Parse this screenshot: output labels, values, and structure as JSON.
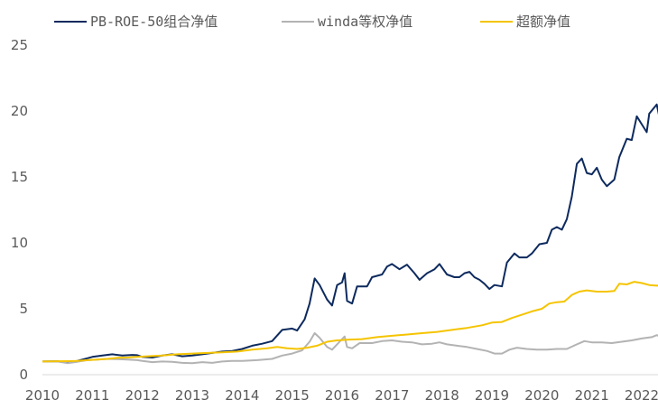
{
  "chart_data": {
    "type": "line",
    "title": "",
    "xlabel": "",
    "ylabel": "",
    "xlim": [
      2010,
      2022
    ],
    "ylim": [
      0,
      25
    ],
    "x_ticks": [
      "2010",
      "2011",
      "2012",
      "2013",
      "2014",
      "2015",
      "2016",
      "2017",
      "2018",
      "2019",
      "2020",
      "2021",
      "2022"
    ],
    "y_ticks": [
      "0",
      "5",
      "10",
      "15",
      "20",
      "25"
    ],
    "grid": false,
    "legend_position": "top",
    "series": [
      {
        "name": "PB-ROE-50组合净值",
        "color": "#0d2a5e",
        "points": [
          [
            2010.0,
            1.0
          ],
          [
            2010.3,
            1.02
          ],
          [
            2010.5,
            0.92
          ],
          [
            2010.7,
            1.05
          ],
          [
            2010.9,
            1.25
          ],
          [
            2011.0,
            1.35
          ],
          [
            2011.2,
            1.45
          ],
          [
            2011.4,
            1.55
          ],
          [
            2011.6,
            1.45
          ],
          [
            2011.8,
            1.5
          ],
          [
            2011.9,
            1.48
          ],
          [
            2012.0,
            1.35
          ],
          [
            2012.2,
            1.3
          ],
          [
            2012.4,
            1.45
          ],
          [
            2012.6,
            1.55
          ],
          [
            2012.8,
            1.4
          ],
          [
            2013.0,
            1.45
          ],
          [
            2013.2,
            1.55
          ],
          [
            2013.4,
            1.65
          ],
          [
            2013.6,
            1.75
          ],
          [
            2013.8,
            1.8
          ],
          [
            2014.0,
            1.95
          ],
          [
            2014.2,
            2.2
          ],
          [
            2014.4,
            2.35
          ],
          [
            2014.6,
            2.55
          ],
          [
            2014.8,
            3.4
          ],
          [
            2015.0,
            3.5
          ],
          [
            2015.1,
            3.35
          ],
          [
            2015.25,
            4.2
          ],
          [
            2015.35,
            5.4
          ],
          [
            2015.45,
            7.3
          ],
          [
            2015.55,
            6.8
          ],
          [
            2015.7,
            5.7
          ],
          [
            2015.8,
            5.25
          ],
          [
            2015.9,
            6.8
          ],
          [
            2016.0,
            7.0
          ],
          [
            2016.05,
            7.7
          ],
          [
            2016.1,
            5.6
          ],
          [
            2016.2,
            5.4
          ],
          [
            2016.3,
            6.7
          ],
          [
            2016.5,
            6.7
          ],
          [
            2016.6,
            7.4
          ],
          [
            2016.8,
            7.6
          ],
          [
            2016.9,
            8.2
          ],
          [
            2017.0,
            8.4
          ],
          [
            2017.15,
            8.0
          ],
          [
            2017.3,
            8.35
          ],
          [
            2017.45,
            7.7
          ],
          [
            2017.55,
            7.2
          ],
          [
            2017.7,
            7.7
          ],
          [
            2017.85,
            8.0
          ],
          [
            2017.95,
            8.4
          ],
          [
            2018.1,
            7.6
          ],
          [
            2018.25,
            7.4
          ],
          [
            2018.35,
            7.4
          ],
          [
            2018.45,
            7.7
          ],
          [
            2018.55,
            7.8
          ],
          [
            2018.65,
            7.4
          ],
          [
            2018.75,
            7.2
          ],
          [
            2018.85,
            6.9
          ],
          [
            2018.95,
            6.5
          ],
          [
            2019.05,
            6.8
          ],
          [
            2019.2,
            6.7
          ],
          [
            2019.3,
            8.5
          ],
          [
            2019.45,
            9.2
          ],
          [
            2019.55,
            8.9
          ],
          [
            2019.7,
            8.9
          ],
          [
            2019.8,
            9.2
          ],
          [
            2019.95,
            9.9
          ],
          [
            2020.1,
            10.0
          ],
          [
            2020.2,
            11.0
          ],
          [
            2020.3,
            11.2
          ],
          [
            2020.4,
            11.0
          ],
          [
            2020.5,
            11.8
          ],
          [
            2020.6,
            13.5
          ],
          [
            2020.7,
            16.0
          ],
          [
            2020.8,
            16.4
          ],
          [
            2020.9,
            15.3
          ],
          [
            2021.0,
            15.2
          ],
          [
            2021.1,
            15.7
          ],
          [
            2021.2,
            14.8
          ],
          [
            2021.3,
            14.3
          ],
          [
            2021.45,
            14.8
          ],
          [
            2021.55,
            16.5
          ],
          [
            2021.7,
            17.9
          ],
          [
            2021.8,
            17.8
          ],
          [
            2021.9,
            19.6
          ],
          [
            2022.0,
            19.0
          ],
          [
            2022.1,
            18.4
          ],
          [
            2022.15,
            19.8
          ],
          [
            2022.3,
            20.5
          ],
          [
            2022.4,
            18.7
          ],
          [
            2022.5,
            19.7
          ]
        ]
      },
      {
        "name": "winda等权净值",
        "color": "#b3b3b3",
        "points": [
          [
            2010.0,
            1.0
          ],
          [
            2010.3,
            1.0
          ],
          [
            2010.5,
            0.88
          ],
          [
            2010.7,
            0.98
          ],
          [
            2010.9,
            1.1
          ],
          [
            2011.1,
            1.15
          ],
          [
            2011.3,
            1.2
          ],
          [
            2011.5,
            1.18
          ],
          [
            2011.7,
            1.15
          ],
          [
            2011.9,
            1.1
          ],
          [
            2012.0,
            1.05
          ],
          [
            2012.2,
            0.95
          ],
          [
            2012.4,
            1.0
          ],
          [
            2012.6,
            0.98
          ],
          [
            2012.8,
            0.9
          ],
          [
            2013.0,
            0.88
          ],
          [
            2013.2,
            0.95
          ],
          [
            2013.4,
            0.9
          ],
          [
            2013.6,
            1.0
          ],
          [
            2013.8,
            1.05
          ],
          [
            2014.0,
            1.05
          ],
          [
            2014.3,
            1.1
          ],
          [
            2014.6,
            1.2
          ],
          [
            2014.8,
            1.45
          ],
          [
            2015.0,
            1.6
          ],
          [
            2015.2,
            1.85
          ],
          [
            2015.35,
            2.5
          ],
          [
            2015.45,
            3.15
          ],
          [
            2015.55,
            2.8
          ],
          [
            2015.7,
            2.1
          ],
          [
            2015.8,
            1.9
          ],
          [
            2015.95,
            2.5
          ],
          [
            2016.05,
            2.9
          ],
          [
            2016.1,
            2.1
          ],
          [
            2016.2,
            2.0
          ],
          [
            2016.35,
            2.4
          ],
          [
            2016.6,
            2.4
          ],
          [
            2016.8,
            2.55
          ],
          [
            2017.0,
            2.6
          ],
          [
            2017.2,
            2.5
          ],
          [
            2017.4,
            2.45
          ],
          [
            2017.6,
            2.3
          ],
          [
            2017.8,
            2.35
          ],
          [
            2017.95,
            2.45
          ],
          [
            2018.1,
            2.3
          ],
          [
            2018.3,
            2.2
          ],
          [
            2018.5,
            2.1
          ],
          [
            2018.7,
            1.95
          ],
          [
            2018.9,
            1.8
          ],
          [
            2019.05,
            1.6
          ],
          [
            2019.2,
            1.6
          ],
          [
            2019.35,
            1.9
          ],
          [
            2019.5,
            2.05
          ],
          [
            2019.7,
            1.95
          ],
          [
            2019.9,
            1.9
          ],
          [
            2020.1,
            1.9
          ],
          [
            2020.3,
            1.95
          ],
          [
            2020.5,
            1.95
          ],
          [
            2020.7,
            2.3
          ],
          [
            2020.85,
            2.55
          ],
          [
            2021.0,
            2.45
          ],
          [
            2021.2,
            2.45
          ],
          [
            2021.4,
            2.4
          ],
          [
            2021.6,
            2.5
          ],
          [
            2021.8,
            2.6
          ],
          [
            2022.0,
            2.75
          ],
          [
            2022.2,
            2.85
          ],
          [
            2022.3,
            3.0
          ],
          [
            2022.4,
            2.85
          ],
          [
            2022.5,
            2.9
          ]
        ]
      },
      {
        "name": "超额净值",
        "color": "#f5c400",
        "points": [
          [
            2010.0,
            1.0
          ],
          [
            2010.3,
            1.02
          ],
          [
            2010.5,
            1.03
          ],
          [
            2010.7,
            1.05
          ],
          [
            2010.9,
            1.1
          ],
          [
            2011.1,
            1.15
          ],
          [
            2011.3,
            1.2
          ],
          [
            2011.5,
            1.28
          ],
          [
            2011.7,
            1.3
          ],
          [
            2011.9,
            1.35
          ],
          [
            2012.1,
            1.4
          ],
          [
            2012.4,
            1.45
          ],
          [
            2012.7,
            1.55
          ],
          [
            2013.0,
            1.6
          ],
          [
            2013.3,
            1.65
          ],
          [
            2013.6,
            1.7
          ],
          [
            2013.9,
            1.75
          ],
          [
            2014.2,
            1.9
          ],
          [
            2014.5,
            2.0
          ],
          [
            2014.7,
            2.1
          ],
          [
            2014.9,
            2.0
          ],
          [
            2015.1,
            1.95
          ],
          [
            2015.3,
            2.05
          ],
          [
            2015.5,
            2.2
          ],
          [
            2015.7,
            2.5
          ],
          [
            2015.9,
            2.6
          ],
          [
            2016.1,
            2.65
          ],
          [
            2016.4,
            2.7
          ],
          [
            2016.7,
            2.85
          ],
          [
            2017.0,
            2.95
          ],
          [
            2017.3,
            3.05
          ],
          [
            2017.6,
            3.15
          ],
          [
            2017.9,
            3.25
          ],
          [
            2018.2,
            3.4
          ],
          [
            2018.5,
            3.55
          ],
          [
            2018.8,
            3.75
          ],
          [
            2019.0,
            3.95
          ],
          [
            2019.2,
            4.0
          ],
          [
            2019.4,
            4.3
          ],
          [
            2019.6,
            4.55
          ],
          [
            2019.8,
            4.8
          ],
          [
            2020.0,
            5.0
          ],
          [
            2020.15,
            5.4
          ],
          [
            2020.3,
            5.5
          ],
          [
            2020.45,
            5.55
          ],
          [
            2020.6,
            6.05
          ],
          [
            2020.75,
            6.3
          ],
          [
            2020.9,
            6.4
          ],
          [
            2021.1,
            6.3
          ],
          [
            2021.3,
            6.3
          ],
          [
            2021.45,
            6.35
          ],
          [
            2021.55,
            6.9
          ],
          [
            2021.7,
            6.85
          ],
          [
            2021.85,
            7.05
          ],
          [
            2022.0,
            6.95
          ],
          [
            2022.15,
            6.8
          ],
          [
            2022.3,
            6.75
          ],
          [
            2022.5,
            6.8
          ]
        ]
      }
    ]
  }
}
